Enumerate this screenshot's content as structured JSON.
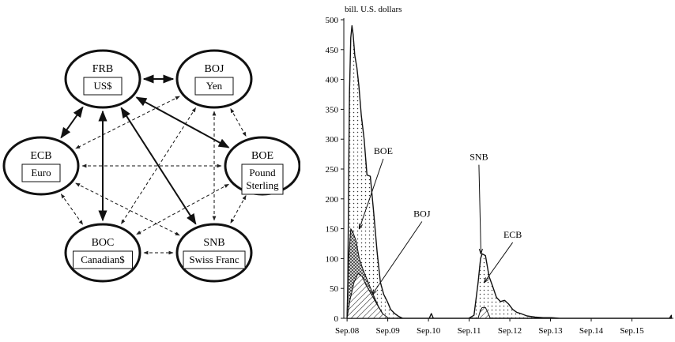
{
  "network": {
    "nodes": [
      {
        "id": "FRB",
        "name": "FRB",
        "currency": [
          "US$"
        ]
      },
      {
        "id": "BOJ",
        "name": "BOJ",
        "currency": [
          "Yen"
        ]
      },
      {
        "id": "ECB",
        "name": "ECB",
        "currency": [
          "Euro"
        ]
      },
      {
        "id": "BOE",
        "name": "BOE",
        "currency": [
          "Pound",
          "Sterling"
        ]
      },
      {
        "id": "BOC",
        "name": "BOC",
        "currency": [
          "Canadian$"
        ]
      },
      {
        "id": "SNB",
        "name": "SNB",
        "currency": [
          "Swiss Franc"
        ]
      }
    ],
    "edges": [
      {
        "from": "FRB",
        "to": "BOJ",
        "style": "solid"
      },
      {
        "from": "FRB",
        "to": "ECB",
        "style": "solid"
      },
      {
        "from": "FRB",
        "to": "BOE",
        "style": "solid"
      },
      {
        "from": "FRB",
        "to": "BOC",
        "style": "solid"
      },
      {
        "from": "FRB",
        "to": "SNB",
        "style": "solid"
      },
      {
        "from": "BOJ",
        "to": "ECB",
        "style": "dashed"
      },
      {
        "from": "BOJ",
        "to": "BOE",
        "style": "dashed"
      },
      {
        "from": "BOJ",
        "to": "BOC",
        "style": "dashed"
      },
      {
        "from": "BOJ",
        "to": "SNB",
        "style": "dashed"
      },
      {
        "from": "ECB",
        "to": "BOE",
        "style": "dashed"
      },
      {
        "from": "ECB",
        "to": "BOC",
        "style": "dashed"
      },
      {
        "from": "ECB",
        "to": "SNB",
        "style": "dashed"
      },
      {
        "from": "BOE",
        "to": "BOC",
        "style": "dashed"
      },
      {
        "from": "BOE",
        "to": "SNB",
        "style": "dashed"
      },
      {
        "from": "BOC",
        "to": "SNB",
        "style": "dashed"
      }
    ]
  },
  "chart_data": {
    "type": "area",
    "unit_label": "bill. U.S. dollars",
    "x_ticks": [
      "Sep.08",
      "Sep.09",
      "Sep.10",
      "Sep.11",
      "Sep.12",
      "Sep.13",
      "Sep.14",
      "Sep.15"
    ],
    "x_range": [
      2008.6,
      2016.7
    ],
    "ylim": [
      0,
      500
    ],
    "y_ticks": [
      0,
      50,
      100,
      150,
      200,
      250,
      300,
      350,
      400,
      450,
      500
    ],
    "series": [
      {
        "key": "total",
        "fill": "dots",
        "x": [
          2008.68,
          2008.7,
          2008.72,
          2008.74,
          2008.77,
          2008.8,
          2008.83,
          2008.87,
          2008.92,
          2008.97,
          2009.03,
          2009.1,
          2009.17,
          2009.25,
          2009.33,
          2009.42,
          2009.5,
          2009.58,
          2009.67,
          2009.75,
          2009.85,
          2009.95,
          2010.05,
          2010.5,
          2010.7,
          2010.75,
          2010.8,
          2011.0,
          2011.67,
          2011.8,
          2011.9,
          2011.96,
          2012.0,
          2012.08,
          2012.17,
          2012.25,
          2012.35,
          2012.45,
          2012.55,
          2012.65,
          2012.75,
          2012.85,
          2012.95,
          2013.1,
          2013.3,
          2013.5,
          2013.7,
          2013.9,
          2014.2,
          2014.6,
          2015.0,
          2015.5,
          2016.0,
          2016.6,
          2016.65
        ],
        "y": [
          0,
          60,
          250,
          380,
          470,
          490,
          475,
          440,
          420,
          390,
          340,
          300,
          240,
          238,
          180,
          110,
          60,
          40,
          28,
          15,
          8,
          3,
          0,
          0,
          0,
          8,
          0,
          0,
          0,
          5,
          60,
          100,
          108,
          105,
          70,
          55,
          35,
          28,
          30,
          24,
          15,
          10,
          8,
          4,
          2,
          1,
          1,
          0,
          0,
          0,
          0,
          0,
          0,
          0,
          5
        ]
      },
      {
        "key": "BOE",
        "fill": "cross",
        "x": [
          2008.68,
          2008.72,
          2008.77,
          2008.82,
          2008.9,
          2008.98,
          2009.08,
          2009.2,
          2009.32,
          2009.45,
          2009.58,
          2009.7
        ],
        "y": [
          0,
          100,
          150,
          145,
          130,
          100,
          80,
          60,
          40,
          20,
          5,
          0
        ]
      },
      {
        "key": "BOJ",
        "fill": "hatch",
        "x": [
          2008.68,
          2008.75,
          2008.85,
          2008.95,
          2009.05,
          2009.15,
          2009.28,
          2009.4,
          2009.55,
          2009.7
        ],
        "y": [
          0,
          30,
          60,
          75,
          70,
          55,
          40,
          25,
          8,
          0
        ]
      },
      {
        "key": "SNB_small",
        "fill": "hatch",
        "x": [
          2011.9,
          2011.95,
          2012.0,
          2012.08,
          2012.15,
          2012.2
        ],
        "y": [
          0,
          12,
          18,
          18,
          8,
          0
        ]
      }
    ],
    "annotations": [
      {
        "label": "BOE",
        "text_x": 2009.57,
        "text_y": 275,
        "arrow_to_x": 2008.98,
        "arrow_to_y": 150
      },
      {
        "label": "BOJ",
        "text_x": 2010.52,
        "text_y": 170,
        "arrow_to_x": 2009.3,
        "arrow_to_y": 40
      },
      {
        "label": "SNB",
        "text_x": 2011.92,
        "text_y": 265,
        "arrow_to_x": 2011.97,
        "arrow_to_y": 108
      },
      {
        "label": "ECB",
        "text_x": 2012.75,
        "text_y": 135,
        "arrow_to_x": 2012.05,
        "arrow_to_y": 60
      }
    ]
  }
}
